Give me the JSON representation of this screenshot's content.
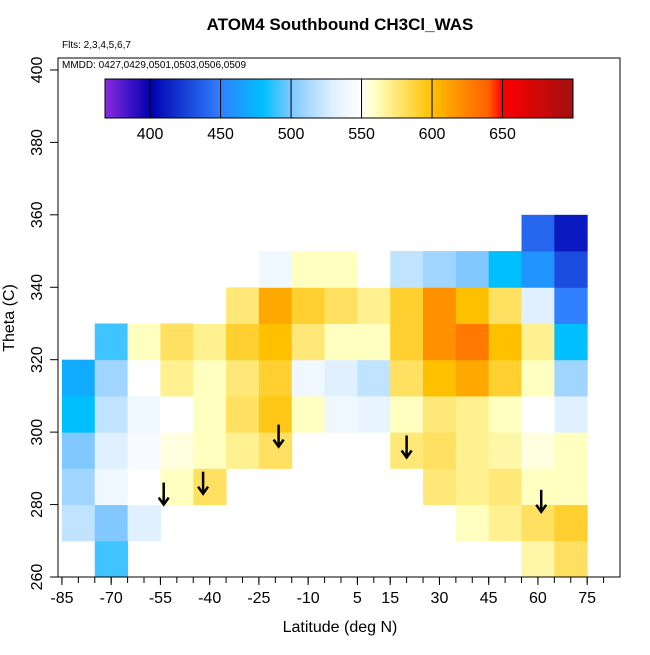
{
  "chart_data": {
    "type": "heatmap",
    "title": "ATOM4 Southbound CH3Cl_WAS",
    "subtitle": "Flts: 2,3,4,5,6,7",
    "annotation": "MMDD: 0427,0429,0501,0503,0506,0509",
    "xlabel": "Latitude (deg N)",
    "ylabel": "Theta (C)",
    "x": [
      -80,
      -70,
      -60,
      -50,
      -40,
      -30,
      -20,
      -10,
      0,
      10,
      20,
      30,
      40,
      50,
      60,
      70
    ],
    "y": [
      265,
      275,
      285,
      295,
      305,
      315,
      325,
      335,
      345,
      355
    ],
    "values": [
      [
        null,
        490,
        null,
        null,
        null,
        null,
        null,
        null,
        null,
        null,
        null,
        null,
        null,
        null,
        565,
        580
      ],
      [
        520,
        500,
        530,
        null,
        null,
        null,
        null,
        null,
        null,
        null,
        null,
        null,
        560,
        570,
        580,
        590
      ],
      [
        510,
        540,
        550,
        560,
        580,
        null,
        null,
        null,
        null,
        null,
        null,
        575,
        570,
        575,
        560,
        560
      ],
      [
        500,
        530,
        545,
        555,
        560,
        570,
        580,
        null,
        null,
        null,
        575,
        580,
        570,
        565,
        555,
        560
      ],
      [
        480,
        520,
        540,
        550,
        560,
        580,
        595,
        560,
        540,
        535,
        560,
        575,
        570,
        560,
        550,
        530
      ],
      [
        470,
        510,
        550,
        570,
        560,
        575,
        590,
        540,
        530,
        520,
        580,
        600,
        610,
        590,
        560,
        510
      ],
      [
        null,
        490,
        560,
        580,
        570,
        590,
        600,
        575,
        560,
        560,
        590,
        620,
        630,
        600,
        570,
        480
      ],
      [
        null,
        null,
        null,
        null,
        550,
        575,
        610,
        590,
        580,
        570,
        590,
        620,
        600,
        580,
        530,
        450
      ],
      [
        null,
        null,
        null,
        null,
        null,
        null,
        540,
        560,
        560,
        550,
        520,
        510,
        500,
        480,
        460,
        430
      ],
      [
        null,
        null,
        null,
        null,
        null,
        null,
        null,
        null,
        null,
        null,
        null,
        null,
        null,
        null,
        440,
        410
      ]
    ],
    "arrows_x": [
      -54,
      -42,
      -19,
      20,
      61
    ],
    "arrows_y": [
      280,
      283,
      296,
      293,
      278
    ],
    "xlim": [
      -86.2,
      85
    ],
    "ylim": [
      260,
      403.3
    ],
    "xticks": [
      -85,
      -70,
      -55,
      -40,
      -25,
      -10,
      5,
      15,
      30,
      45,
      60,
      75
    ],
    "xminorticks": [
      -85,
      -80,
      -75,
      -70,
      -65,
      -60,
      -55,
      -50,
      -45,
      -40,
      -35,
      -30,
      -25,
      -20,
      -15,
      -10,
      -5,
      0,
      5,
      10,
      15,
      20,
      25,
      30,
      35,
      40,
      45,
      50,
      55,
      60,
      65,
      70,
      75,
      80
    ],
    "yticks": [
      260,
      280,
      300,
      320,
      340,
      360,
      380,
      400
    ],
    "clim": [
      368,
      700
    ],
    "cticks": [
      400,
      450,
      500,
      550,
      600,
      650
    ],
    "colorscale": {
      "values": [
        368,
        400,
        450,
        480,
        500,
        530,
        550,
        560,
        580,
        600,
        620,
        640,
        650,
        700
      ],
      "colors": [
        "#8a2be2",
        "#0000b0",
        "#3080ff",
        "#00bfff",
        "#80c8ff",
        "#e0f0ff",
        "#ffffff",
        "#ffffc0",
        "#ffe060",
        "#ffc000",
        "#ff9000",
        "#ff6000",
        "#ff0000",
        "#a01010"
      ]
    }
  }
}
